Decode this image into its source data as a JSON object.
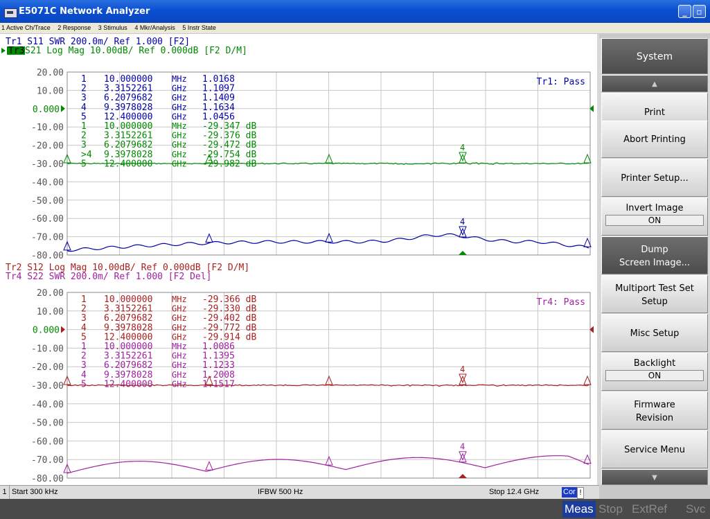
{
  "window": {
    "title": "E5071C Network Analyzer",
    "minimize_label": "_",
    "restore_label": "▫"
  },
  "menu": [
    "1 Active Ch/Trace",
    "2 Response",
    "3 Stimulus",
    "4 Mkr/Analysis",
    "5 Instr State"
  ],
  "colors": {
    "tr1": "#0000a8",
    "tr2": "#a82020",
    "tr3": "#008a00",
    "tr4": "#a020a0",
    "grid": "#c8c8c8",
    "axis_text": "#555555"
  },
  "upper_graph": {
    "header": [
      {
        "text": "Tr1  S11  SWR 200.0m/ Ref 1.000 [F2]",
        "color": "#0000a8"
      },
      {
        "active": "Tr3",
        "text": " S21  Log Mag 10.00dB/ Ref 0.000dB [F2 D/M]",
        "color": "#008a00"
      }
    ],
    "y_ticks": [
      "20.00",
      "10.00",
      "0.000",
      "-10.00",
      "-20.00",
      "-30.00",
      "-40.00",
      "-50.00",
      "-60.00",
      "-70.00",
      "-80.00"
    ],
    "ref_tick_index": 2,
    "pass_label": "Tr1: Pass",
    "markers": [
      {
        "n": "1",
        "freq": "10.000000",
        "unit": "MHz",
        "val": "1.0168",
        "color": "#0000a8"
      },
      {
        "n": "2",
        "freq": "3.3152261",
        "unit": "GHz",
        "val": "1.1097",
        "color": "#0000a8"
      },
      {
        "n": "3",
        "freq": "6.2079682",
        "unit": "GHz",
        "val": "1.1409",
        "color": "#0000a8"
      },
      {
        "n": "4",
        "freq": "9.3978028",
        "unit": "GHz",
        "val": "1.1634",
        "color": "#0000a8"
      },
      {
        "n": "5",
        "freq": "12.400000",
        "unit": "GHz",
        "val": "1.0456",
        "color": "#0000a8"
      },
      {
        "n": "1",
        "freq": "10.000000",
        "unit": "MHz",
        "val": "-29.347  dB",
        "color": "#008a00"
      },
      {
        "n": "2",
        "freq": "3.3152261",
        "unit": "GHz",
        "val": "-29.376  dB",
        "color": "#008a00"
      },
      {
        "n": "3",
        "freq": "6.2079682",
        "unit": "GHz",
        "val": "-29.472  dB",
        "color": "#008a00"
      },
      {
        "n": ">4",
        "freq": "9.3978028",
        "unit": "GHz",
        "val": "-29.754  dB",
        "color": "#008a00"
      },
      {
        "n": "5",
        "freq": "12.400000",
        "unit": "GHz",
        "val": "-29.982  dB",
        "color": "#008a00"
      }
    ]
  },
  "lower_graph": {
    "header": [
      {
        "text": "Tr2  S12  Log Mag 10.00dB/ Ref 0.000dB [F2 D/M]",
        "color": "#a82020"
      },
      {
        "text": "Tr4  S22  SWR 200.0m/ Ref 1.000 [F2 Del]",
        "color": "#a020a0"
      }
    ],
    "y_ticks": [
      "20.00",
      "10.00",
      "0.000",
      "-10.00",
      "-20.00",
      "-30.00",
      "-40.00",
      "-50.00",
      "-60.00",
      "-70.00",
      "-80.00"
    ],
    "ref_tick_index": 2,
    "pass_label": "Tr4: Pass",
    "markers": [
      {
        "n": "1",
        "freq": "10.000000",
        "unit": "MHz",
        "val": "-29.366  dB",
        "color": "#a82020"
      },
      {
        "n": "2",
        "freq": "3.3152261",
        "unit": "GHz",
        "val": "-29.330  dB",
        "color": "#a82020"
      },
      {
        "n": "3",
        "freq": "6.2079682",
        "unit": "GHz",
        "val": "-29.402  dB",
        "color": "#a82020"
      },
      {
        "n": "4",
        "freq": "9.3978028",
        "unit": "GHz",
        "val": "-29.772  dB",
        "color": "#a82020"
      },
      {
        "n": "5",
        "freq": "12.400000",
        "unit": "GHz",
        "val": "-29.914  dB",
        "color": "#a82020"
      },
      {
        "n": "1",
        "freq": "10.000000",
        "unit": "MHz",
        "val": "1.0086",
        "color": "#a020a0"
      },
      {
        "n": "2",
        "freq": "3.3152261",
        "unit": "GHz",
        "val": "1.1395",
        "color": "#a020a0"
      },
      {
        "n": "3",
        "freq": "6.2079682",
        "unit": "GHz",
        "val": "1.1233",
        "color": "#a020a0"
      },
      {
        "n": "4",
        "freq": "9.3978028",
        "unit": "GHz",
        "val": "1.2008",
        "color": "#a020a0"
      },
      {
        "n": "5",
        "freq": "12.400000",
        "unit": "GHz",
        "val": "1.1517",
        "color": "#a020a0"
      }
    ]
  },
  "softkeys": {
    "title": "System",
    "scroll_up": "▲",
    "scroll_down": "▼",
    "print": "Print",
    "abort_printing": "Abort Printing",
    "printer_setup": "Printer Setup...",
    "invert_image": {
      "label": "Invert Image",
      "state": "ON"
    },
    "dump_screen": {
      "line1": "Dump",
      "line2": "Screen Image..."
    },
    "multiport": {
      "line1": "Multiport Test Set",
      "line2": "Setup"
    },
    "misc_setup": "Misc Setup",
    "backlight": {
      "label": "Backlight",
      "state": "ON"
    },
    "firmware": {
      "line1": "Firmware",
      "line2": "Revision"
    },
    "service_menu": "Service Menu"
  },
  "status": {
    "channel": "1",
    "start": "Start 300 kHz",
    "ifbw": "IFBW 500 Hz",
    "stop": "Stop 12.4 GHz",
    "cor": "Cor",
    "flag": "!"
  },
  "bottom": {
    "meas": "Meas",
    "stop": "Stop",
    "extref": "ExtRef",
    "svc": "Svc"
  }
}
